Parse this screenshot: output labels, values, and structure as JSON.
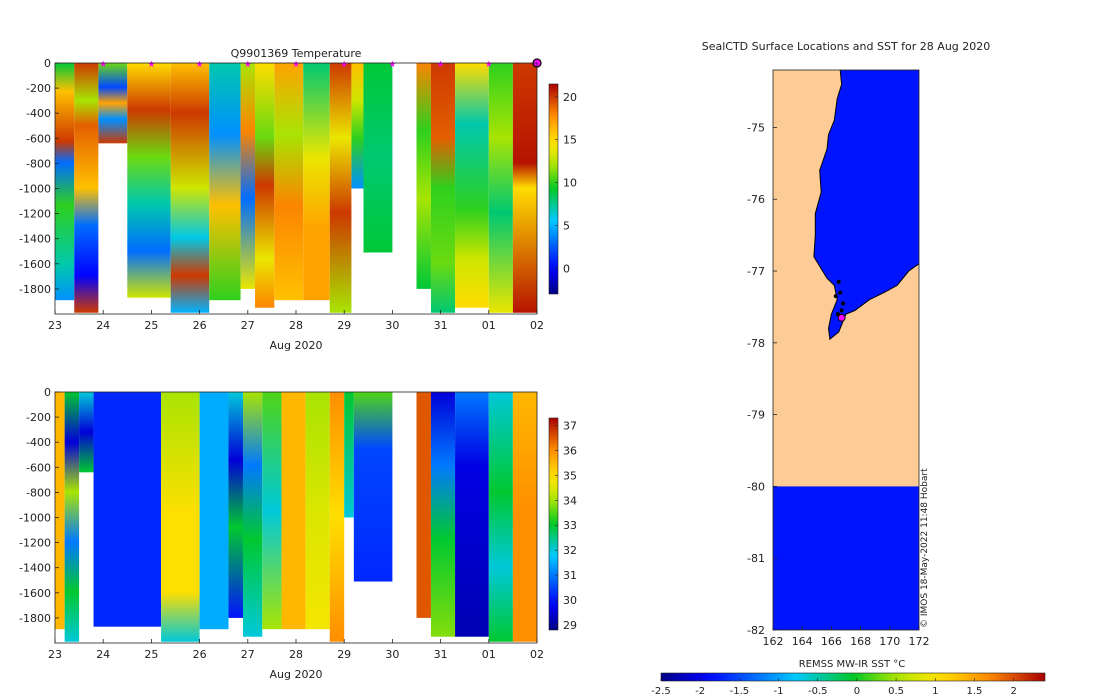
{
  "chart_data": [
    {
      "type": "heatmap",
      "panel": "temperature-section",
      "title": "Q9901369  Temperature",
      "xlabel": "Aug 2020",
      "ylabel": "",
      "x_ticks": [
        "23",
        "24",
        "25",
        "26",
        "27",
        "28",
        "29",
        "30",
        "31",
        "01",
        "02"
      ],
      "x_range": [
        23,
        33
      ],
      "y_ticks": [
        "0",
        "-200",
        "-400",
        "-600",
        "-800",
        "-1000",
        "-1200",
        "-1400",
        "-1600",
        "-1800"
      ],
      "y_range": [
        -2000,
        0
      ],
      "colorbar": {
        "ticks": [
          "0",
          "5",
          "10",
          "15",
          "20"
        ],
        "range": [
          -3,
          21.5
        ]
      },
      "profile_markers": [
        24,
        25,
        26,
        27,
        28,
        29,
        30,
        31,
        32
      ],
      "profiles": [
        {
          "x": [
            23.0,
            23.4
          ],
          "depth": 1890,
          "stops": [
            [
              0,
              9
            ],
            [
              0.12,
              16
            ],
            [
              0.33,
              20
            ],
            [
              0.42,
              3
            ],
            [
              0.6,
              10
            ],
            [
              0.85,
              7
            ],
            [
              1,
              4
            ]
          ]
        },
        {
          "x": [
            23.4,
            23.9
          ],
          "depth": 1990,
          "stops": [
            [
              0,
              20
            ],
            [
              0.15,
              12
            ],
            [
              0.25,
              19
            ],
            [
              0.5,
              16
            ],
            [
              0.65,
              3
            ],
            [
              0.85,
              0
            ],
            [
              1,
              20
            ]
          ]
        },
        {
          "x": [
            23.9,
            24.5
          ],
          "depth": 640,
          "stops": [
            [
              0,
              11
            ],
            [
              0.3,
              2
            ],
            [
              0.5,
              17
            ],
            [
              0.7,
              4
            ],
            [
              1,
              20
            ]
          ]
        },
        {
          "x": [
            24.5,
            25.4
          ],
          "depth": 1870,
          "stops": [
            [
              0,
              15
            ],
            [
              0.2,
              20
            ],
            [
              0.4,
              11
            ],
            [
              0.6,
              7
            ],
            [
              0.8,
              3
            ],
            [
              1,
              13
            ]
          ]
        },
        {
          "x": [
            25.4,
            26.2
          ],
          "depth": 1990,
          "stops": [
            [
              0,
              16
            ],
            [
              0.2,
              20
            ],
            [
              0.5,
              13
            ],
            [
              0.7,
              6
            ],
            [
              0.85,
              20
            ],
            [
              1,
              5
            ]
          ]
        },
        {
          "x": [
            26.2,
            26.85
          ],
          "depth": 1890,
          "stops": [
            [
              0,
              7
            ],
            [
              0.3,
              4
            ],
            [
              0.6,
              16
            ],
            [
              1,
              10
            ]
          ]
        },
        {
          "x": [
            26.85,
            27.15
          ],
          "depth": 1800,
          "stops": [
            [
              0,
              12
            ],
            [
              0.3,
              18
            ],
            [
              0.6,
              3
            ],
            [
              1,
              14
            ]
          ]
        },
        {
          "x": [
            27.15,
            27.55
          ],
          "depth": 1950,
          "stops": [
            [
              0,
              15
            ],
            [
              0.3,
              11
            ],
            [
              0.5,
              20
            ],
            [
              0.8,
              14
            ],
            [
              1,
              18
            ]
          ]
        },
        {
          "x": [
            27.55,
            28.15
          ],
          "depth": 1890,
          "stops": [
            [
              0,
              17
            ],
            [
              0.3,
              12
            ],
            [
              0.6,
              18
            ],
            [
              1,
              16
            ]
          ]
        },
        {
          "x": [
            28.15,
            28.7
          ],
          "depth": 1890,
          "stops": [
            [
              0,
              8
            ],
            [
              0.4,
              14
            ],
            [
              0.7,
              17
            ],
            [
              1,
              17
            ]
          ]
        },
        {
          "x": [
            28.7,
            29.15
          ],
          "depth": 1990,
          "stops": [
            [
              0,
              20
            ],
            [
              0.3,
              14
            ],
            [
              0.6,
              20
            ],
            [
              1,
              12
            ]
          ]
        },
        {
          "x": [
            29.15,
            29.4
          ],
          "depth": 1000,
          "stops": [
            [
              0,
              16
            ],
            [
              0.3,
              13
            ],
            [
              0.6,
              10
            ],
            [
              1,
              4
            ]
          ]
        },
        {
          "x": [
            29.4,
            30.0
          ],
          "depth": 1510,
          "stops": [
            [
              0,
              9
            ],
            [
              0.5,
              8
            ],
            [
              1,
              9
            ]
          ]
        },
        {
          "x": [
            30.5,
            30.8
          ],
          "depth": 1800,
          "stops": [
            [
              0,
              18
            ],
            [
              0.3,
              10
            ],
            [
              0.6,
              12
            ],
            [
              1,
              9
            ]
          ]
        },
        {
          "x": [
            30.8,
            31.3
          ],
          "depth": 1990,
          "stops": [
            [
              0,
              20
            ],
            [
              0.3,
              19
            ],
            [
              0.5,
              10
            ],
            [
              0.8,
              11
            ],
            [
              1,
              8
            ]
          ]
        },
        {
          "x": [
            31.3,
            32.0
          ],
          "depth": 1950,
          "stops": [
            [
              0,
              15
            ],
            [
              0.25,
              7
            ],
            [
              0.6,
              10
            ],
            [
              0.8,
              13
            ],
            [
              1,
              15
            ]
          ]
        },
        {
          "x": [
            32.0,
            32.5
          ],
          "depth": 1990,
          "stops": [
            [
              0,
              10
            ],
            [
              0.3,
              12
            ],
            [
              0.6,
              8
            ],
            [
              1,
              14
            ]
          ]
        },
        {
          "x": [
            32.5,
            33.0
          ],
          "depth": 1990,
          "stops": [
            [
              0,
              20
            ],
            [
              0.4,
              21
            ],
            [
              0.5,
              15
            ],
            [
              1,
              21
            ]
          ]
        }
      ]
    },
    {
      "type": "heatmap",
      "panel": "salinity-section",
      "title": "",
      "xlabel": "Aug 2020",
      "ylabel": "",
      "x_ticks": [
        "23",
        "24",
        "25",
        "26",
        "27",
        "28",
        "29",
        "30",
        "31",
        "01",
        "02"
      ],
      "x_range": [
        23,
        33
      ],
      "y_ticks": [
        "0",
        "-200",
        "-400",
        "-600",
        "-800",
        "-1000",
        "-1200",
        "-1400",
        "-1600",
        "-1800"
      ],
      "y_range": [
        -2000,
        0
      ],
      "colorbar": {
        "ticks": [
          "29",
          "30",
          "31",
          "32",
          "33",
          "34",
          "35",
          "36",
          "37"
        ],
        "range": [
          28.8,
          37.3
        ]
      },
      "profiles": [
        {
          "x": [
            23.0,
            23.2
          ],
          "depth": 1890,
          "stops": [
            [
              0,
              35.5
            ],
            [
              1,
              35.5
            ]
          ]
        },
        {
          "x": [
            23.2,
            23.5
          ],
          "depth": 1990,
          "stops": [
            [
              0,
              33
            ],
            [
              0.2,
              29.5
            ],
            [
              0.4,
              34
            ],
            [
              0.6,
              31
            ],
            [
              0.8,
              33
            ],
            [
              1,
              32
            ]
          ]
        },
        {
          "x": [
            23.5,
            23.8
          ],
          "depth": 640,
          "stops": [
            [
              0,
              32
            ],
            [
              0.5,
              29.5
            ],
            [
              1,
              33
            ]
          ]
        },
        {
          "x": [
            23.8,
            25.2
          ],
          "depth": 1870,
          "stops": [
            [
              0,
              30.2
            ],
            [
              1,
              30.2
            ]
          ]
        },
        {
          "x": [
            25.2,
            26.0
          ],
          "depth": 1990,
          "stops": [
            [
              0,
              34
            ],
            [
              0.5,
              35
            ],
            [
              0.8,
              35
            ],
            [
              1,
              32
            ]
          ]
        },
        {
          "x": [
            26.0,
            26.6
          ],
          "depth": 1890,
          "stops": [
            [
              0,
              31.5
            ],
            [
              1,
              31.5
            ]
          ]
        },
        {
          "x": [
            26.6,
            26.9
          ],
          "depth": 1800,
          "stops": [
            [
              0,
              32
            ],
            [
              0.3,
              29.5
            ],
            [
              0.6,
              33
            ],
            [
              1,
              30
            ]
          ]
        },
        {
          "x": [
            26.9,
            27.3
          ],
          "depth": 1950,
          "stops": [
            [
              0,
              34
            ],
            [
              0.3,
              31
            ],
            [
              0.6,
              33
            ],
            [
              1,
              32
            ]
          ]
        },
        {
          "x": [
            27.3,
            27.7
          ],
          "depth": 1890,
          "stops": [
            [
              0,
              33.5
            ],
            [
              0.5,
              32
            ],
            [
              1,
              34
            ]
          ]
        },
        {
          "x": [
            27.7,
            28.2
          ],
          "depth": 1890,
          "stops": [
            [
              0,
              35.5
            ],
            [
              1,
              35.5
            ]
          ]
        },
        {
          "x": [
            28.2,
            28.7
          ],
          "depth": 1890,
          "stops": [
            [
              0,
              34
            ],
            [
              0.5,
              34.5
            ],
            [
              1,
              34.8
            ]
          ]
        },
        {
          "x": [
            28.7,
            29.0
          ],
          "depth": 1990,
          "stops": [
            [
              0,
              36
            ],
            [
              0.5,
              35
            ],
            [
              1,
              36
            ]
          ]
        },
        {
          "x": [
            29.0,
            29.2
          ],
          "depth": 1000,
          "stops": [
            [
              0,
              33
            ],
            [
              1,
              32
            ]
          ]
        },
        {
          "x": [
            29.2,
            30.0
          ],
          "depth": 1510,
          "stops": [
            [
              0,
              33.5
            ],
            [
              0.3,
              30.5
            ],
            [
              1,
              30.2
            ]
          ]
        },
        {
          "x": [
            30.5,
            30.8
          ],
          "depth": 1800,
          "stops": [
            [
              0,
              36.5
            ],
            [
              1,
              36.5
            ]
          ]
        },
        {
          "x": [
            30.8,
            31.3
          ],
          "depth": 1950,
          "stops": [
            [
              0,
              29.5
            ],
            [
              0.3,
              31
            ],
            [
              0.6,
              33
            ],
            [
              1,
              33.8
            ]
          ]
        },
        {
          "x": [
            31.3,
            32.0
          ],
          "depth": 1950,
          "stops": [
            [
              0,
              31
            ],
            [
              0.3,
              29.6
            ],
            [
              1,
              29.2
            ]
          ]
        },
        {
          "x": [
            32.0,
            32.5
          ],
          "depth": 1990,
          "stops": [
            [
              0,
              32
            ],
            [
              0.4,
              33
            ],
            [
              0.7,
              32
            ],
            [
              1,
              33
            ]
          ]
        },
        {
          "x": [
            32.5,
            33.0
          ],
          "depth": 1990,
          "stops": [
            [
              0,
              35.5
            ],
            [
              0.5,
              36
            ],
            [
              1,
              36
            ]
          ]
        }
      ]
    },
    {
      "type": "heatmap",
      "panel": "sst-map",
      "title": "SealCTD Surface Locations and SST for 28 Aug 2020",
      "xlabel": "",
      "ylabel": "",
      "x_ticks": [
        "162",
        "164",
        "166",
        "168",
        "170",
        "172"
      ],
      "x_range": [
        162,
        172
      ],
      "y_ticks": [
        "-75",
        "-76",
        "-77",
        "-78",
        "-79",
        "-80",
        "-81",
        "-82"
      ],
      "y_range": [
        -82,
        -74.2
      ],
      "colorbar_label": "REMSS MW-IR SST °C",
      "colorbar": {
        "ticks": [
          "-2.5",
          "-2",
          "-1.5",
          "-1",
          "-0.5",
          "0",
          "0.5",
          "1",
          "1.5",
          "2"
        ],
        "range": [
          -2.5,
          2.4
        ]
      },
      "sst_value": -1.8,
      "land_color": "#fccb96",
      "no_data_color": "#ffffff",
      "coast": [
        [
          166.6,
          -74.2
        ],
        [
          166.7,
          -74.4
        ],
        [
          166.4,
          -74.6
        ],
        [
          166.2,
          -74.9
        ],
        [
          165.8,
          -75.1
        ],
        [
          165.7,
          -75.3
        ],
        [
          165.2,
          -75.6
        ],
        [
          165.3,
          -75.9
        ],
        [
          164.9,
          -76.2
        ],
        [
          164.9,
          -76.5
        ],
        [
          164.8,
          -76.8
        ],
        [
          165.4,
          -77.0
        ],
        [
          165.7,
          -77.1
        ],
        [
          166.2,
          -77.2
        ],
        [
          166.4,
          -77.4
        ],
        [
          166.0,
          -77.6
        ],
        [
          165.8,
          -77.8
        ],
        [
          165.9,
          -77.95
        ],
        [
          166.5,
          -77.85
        ],
        [
          166.7,
          -77.75
        ],
        [
          167.0,
          -77.6
        ],
        [
          167.6,
          -77.55
        ],
        [
          168.6,
          -77.4
        ],
        [
          169.6,
          -77.3
        ],
        [
          170.5,
          -77.2
        ],
        [
          171.3,
          -77.0
        ],
        [
          172.0,
          -76.9
        ]
      ],
      "observation_locations": [
        [
          166.5,
          -77.15
        ],
        [
          166.6,
          -77.3
        ],
        [
          166.3,
          -77.35
        ],
        [
          166.7,
          -77.55
        ],
        [
          166.45,
          -77.6
        ],
        [
          166.8,
          -77.45
        ]
      ],
      "latest_location": [
        166.7,
        -77.65
      ],
      "fill_sections": [
        [
          -80.0,
          -82.0
        ]
      ],
      "footnote": "© IMOS 18-May-2022 11:48 Hobart"
    }
  ]
}
